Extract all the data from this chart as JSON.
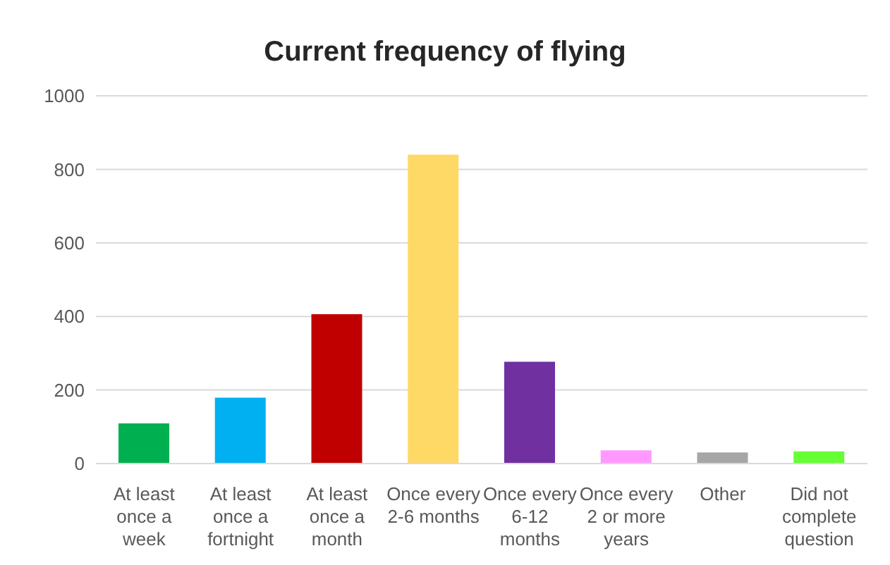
{
  "chart_data": {
    "type": "bar",
    "title": "Current frequency of flying",
    "categories": [
      "At least once a week",
      "At least once a fortnight",
      "At least once a month",
      "Once every 2-6 months",
      "Once every 6-12 months",
      "Once every 2 or more years",
      "Other",
      "Did not complete question"
    ],
    "values": [
      109,
      179,
      406,
      840,
      277,
      36,
      30,
      33
    ],
    "colors": [
      "#00b050",
      "#00b0f0",
      "#c00000",
      "#ffd966",
      "#7030a0",
      "#ff99ff",
      "#a6a6a6",
      "#66ff33"
    ],
    "ylim": [
      0,
      1000
    ],
    "yticks": [
      0,
      200,
      400,
      600,
      800,
      1000
    ],
    "grid": "y"
  }
}
